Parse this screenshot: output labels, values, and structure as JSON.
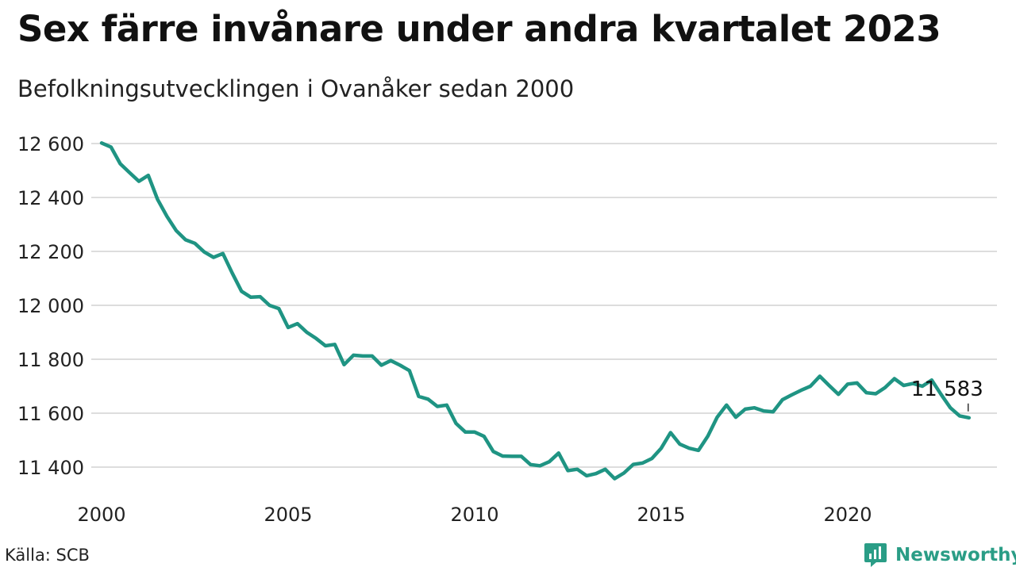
{
  "header": {
    "title": "Sex färre invånare under andra kvartalet 2023",
    "subtitle": "Befolkningsutvecklingen i Ovanåker sedan 2000"
  },
  "footer": {
    "source": "Källa: SCB",
    "brand": "Newsworthy"
  },
  "colors": {
    "line": "#1f9483",
    "grid": "#dddddd",
    "brand": "#2a9d86"
  },
  "chart_data": {
    "type": "line",
    "title": "Sex färre invånare under andra kvartalet 2023",
    "subtitle": "Befolkningsutvecklingen i Ovanåker sedan 2000",
    "xlabel": "",
    "ylabel": "",
    "x_start_year": 2000,
    "x_ticks": [
      "2000",
      "2005",
      "2010",
      "2015",
      "2020"
    ],
    "y_ticks": [
      "11 400",
      "11 600",
      "11 800",
      "12 000",
      "12 200",
      "12 400",
      "12 600"
    ],
    "y_tick_values": [
      11400,
      11600,
      11800,
      12000,
      12200,
      12400,
      12600
    ],
    "ylim": [
      11320,
      12600
    ],
    "grid": true,
    "last_label": "11 583",
    "series": [
      {
        "values": [
          12602,
          12587,
          12525,
          12492,
          12460,
          12482,
          12393,
          12330,
          12277,
          12243,
          12230,
          12198,
          12178,
          12192,
          12120,
          12052,
          12030,
          12032,
          12000,
          11988,
          11918,
          11932,
          11900,
          11877,
          11850,
          11855,
          11780,
          11815,
          11812,
          11812,
          11778,
          11795,
          11778,
          11758,
          11662,
          11652,
          11625,
          11630,
          11562,
          11530,
          11530,
          11514,
          11458,
          11441,
          11440,
          11440,
          11409,
          11405,
          11420,
          11452,
          11387,
          11392,
          11368,
          11376,
          11392,
          11357,
          11378,
          11410,
          11415,
          11432,
          11470,
          11528,
          11485,
          11470,
          11462,
          11515,
          11585,
          11630,
          11585,
          11615,
          11620,
          11608,
          11605,
          11650,
          11668,
          11685,
          11700,
          11737,
          11703,
          11670,
          11708,
          11712,
          11676,
          11672,
          11695,
          11728,
          11703,
          11710,
          11700,
          11723,
          11670,
          11620,
          11590,
          11583
        ]
      }
    ]
  }
}
